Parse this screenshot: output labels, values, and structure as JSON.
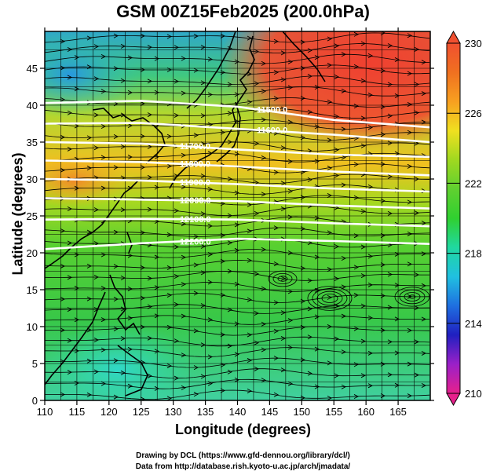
{
  "title": "GSM 00Z15Feb2025 (200.0hPa)",
  "chart_data": {
    "type": "heatmap",
    "title": "GSM 00Z15Feb2025 (200.0hPa)",
    "xlabel": "Longitude (degrees)",
    "ylabel": "Latitude  (degrees)",
    "xlim": [
      110,
      170
    ],
    "ylim": [
      0,
      50
    ],
    "xticks": [
      "110",
      "115",
      "120",
      "125",
      "130",
      "135",
      "140",
      "145",
      "150",
      "155",
      "160",
      "165"
    ],
    "yticks": [
      "0",
      "5",
      "10",
      "15",
      "20",
      "25",
      "30",
      "35",
      "40",
      "45"
    ],
    "colorbar": {
      "labels": [
        "210",
        "214",
        "218",
        "222",
        "226",
        "230"
      ],
      "min": 210,
      "max": 230,
      "colors": [
        "#e6208c",
        "#9b20c8",
        "#2020c0",
        "#1f6fe0",
        "#20c0e0",
        "#20d8a0",
        "#30d030",
        "#60d030",
        "#a0d820",
        "#f0e020",
        "#f8a020",
        "#f07020",
        "#f05030"
      ]
    },
    "contours": [
      {
        "label": "11500.0",
        "lat_at_lon": [
          [
            110,
            40.3
          ],
          [
            125,
            40.6
          ],
          [
            140,
            39.8
          ],
          [
            155,
            38.0
          ],
          [
            170,
            37.0
          ]
        ]
      },
      {
        "label": "11600.0",
        "lat_at_lon": [
          [
            110,
            37.5
          ],
          [
            125,
            37.6
          ],
          [
            140,
            36.8
          ],
          [
            155,
            36.0
          ],
          [
            170,
            35.0
          ]
        ]
      },
      {
        "label": "11700.0",
        "lat_at_lon": [
          [
            110,
            35.0
          ],
          [
            125,
            34.8
          ],
          [
            140,
            34.0
          ],
          [
            155,
            33.3
          ],
          [
            170,
            33.0
          ]
        ]
      },
      {
        "label": "11800.0",
        "lat_at_lon": [
          [
            110,
            32.5
          ],
          [
            125,
            32.3
          ],
          [
            140,
            31.7
          ],
          [
            155,
            31.0
          ],
          [
            170,
            30.5
          ]
        ]
      },
      {
        "label": "11900.0",
        "lat_at_lon": [
          [
            110,
            30.0
          ],
          [
            125,
            29.8
          ],
          [
            140,
            29.3
          ],
          [
            155,
            28.7
          ],
          [
            170,
            28.3
          ]
        ]
      },
      {
        "label": "12000.0",
        "lat_at_lon": [
          [
            110,
            27.4
          ],
          [
            125,
            27.2
          ],
          [
            140,
            27.0
          ],
          [
            155,
            26.4
          ],
          [
            170,
            26.0
          ]
        ]
      },
      {
        "label": "12100.0",
        "lat_at_lon": [
          [
            110,
            24.5
          ],
          [
            125,
            24.6
          ],
          [
            140,
            24.5
          ],
          [
            155,
            24.0
          ],
          [
            170,
            23.6
          ]
        ]
      },
      {
        "label": "12200.0",
        "lat_at_lon": [
          [
            110,
            20.5
          ],
          [
            125,
            21.3
          ],
          [
            140,
            21.9
          ],
          [
            155,
            21.6
          ],
          [
            170,
            21.2
          ]
        ]
      }
    ]
  },
  "footer": {
    "line1": "Drawing by DCL (https://www.gfd-dennou.org/library/dcl/)",
    "line2": "Data from http://database.rish.kyoto-u.ac.jp/arch/jmadata/"
  }
}
